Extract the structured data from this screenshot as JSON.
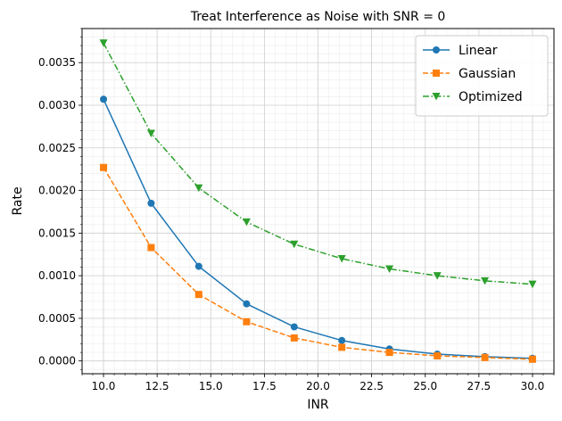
{
  "chart_data": {
    "type": "line",
    "title": "Treat Interference as Noise with SNR = 0",
    "xlabel": "INR",
    "ylabel": "Rate",
    "xlim": [
      9.0,
      31.0
    ],
    "ylim": [
      -0.00015,
      0.0039
    ],
    "xticks": [
      10.0,
      12.5,
      15.0,
      17.5,
      20.0,
      22.5,
      25.0,
      27.5,
      30.0
    ],
    "xtick_labels": [
      "10.0",
      "12.5",
      "15.0",
      "17.5",
      "20.0",
      "22.5",
      "25.0",
      "27.5",
      "30.0"
    ],
    "yticks": [
      0.0,
      0.0005,
      0.001,
      0.0015,
      0.002,
      0.0025,
      0.003,
      0.0035
    ],
    "ytick_labels": [
      "0.0000",
      "0.0005",
      "0.0010",
      "0.0015",
      "0.0020",
      "0.0025",
      "0.0030",
      "0.0035"
    ],
    "grid": true,
    "minor_grid": true,
    "legend_position": "top-right",
    "x": [
      10.0,
      12.22,
      14.44,
      16.67,
      18.89,
      21.11,
      23.33,
      25.56,
      27.78,
      30.0
    ],
    "series": [
      {
        "name": "Linear",
        "color": "#1f77b4",
        "marker": "circle",
        "linestyle": "solid",
        "values": [
          0.00307,
          0.00185,
          0.00111,
          0.00067,
          0.0004,
          0.00024,
          0.00014,
          8e-05,
          5e-05,
          3e-05
        ]
      },
      {
        "name": "Gaussian",
        "color": "#ff7f0e",
        "marker": "square",
        "linestyle": "dashed",
        "values": [
          0.00227,
          0.00133,
          0.00078,
          0.00046,
          0.00027,
          0.00016,
          0.0001,
          6e-05,
          4e-05,
          2e-05
        ]
      },
      {
        "name": "Optimized",
        "color": "#2ca02c",
        "marker": "triangle-down",
        "linestyle": "dashdot",
        "values": [
          0.00373,
          0.00267,
          0.00203,
          0.00163,
          0.00137,
          0.0012,
          0.00108,
          0.001,
          0.00094,
          0.0009
        ]
      }
    ]
  }
}
